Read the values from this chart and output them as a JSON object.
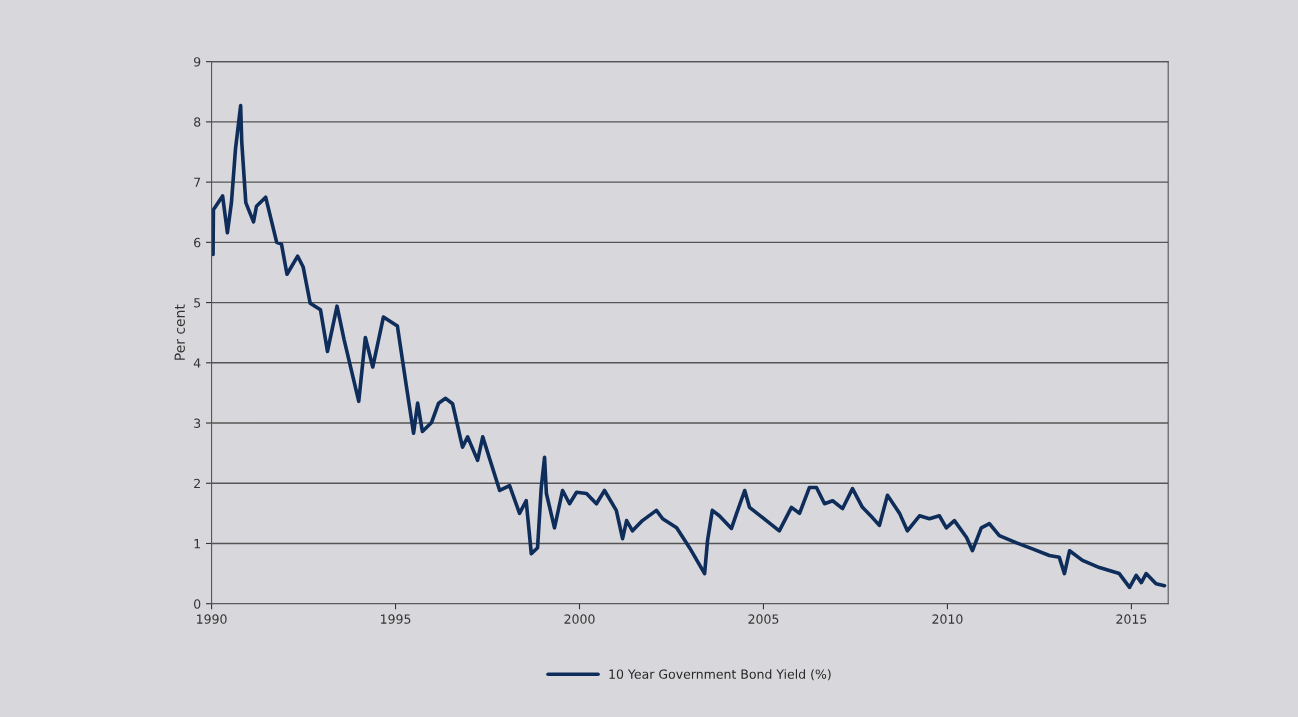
{
  "chart_data": {
    "type": "line",
    "ylabel": "Per cent",
    "xlim": [
      1990,
      2016
    ],
    "xticks": [
      1990,
      1995,
      2000,
      2005,
      2010,
      2015
    ],
    "ylim": [
      0,
      9
    ],
    "yticks": [
      0,
      1,
      2,
      3,
      4,
      5,
      6,
      7,
      8,
      9
    ],
    "grid": "y",
    "legend": "bottom",
    "marker": "none",
    "line_style": "solid",
    "x": [
      1990.04,
      1990.05,
      1990.3,
      1990.43,
      1990.54,
      1990.65,
      1990.79,
      1990.82,
      1990.93,
      1991.14,
      1991.22,
      1991.47,
      1991.77,
      1991.9,
      1992.05,
      1992.34,
      1992.49,
      1992.68,
      1992.96,
      1993.15,
      1993.41,
      1993.6,
      1994.0,
      1994.18,
      1994.38,
      1994.67,
      1995.05,
      1995.3,
      1995.49,
      1995.6,
      1995.73,
      1995.98,
      1996.17,
      1996.36,
      1996.55,
      1996.82,
      1996.96,
      1997.23,
      1997.37,
      1997.83,
      1998.1,
      1998.37,
      1998.55,
      1998.69,
      1998.86,
      1998.96,
      1999.05,
      1999.1,
      1999.32,
      1999.54,
      1999.73,
      1999.92,
      2000.19,
      2000.46,
      2000.68,
      2001.0,
      2001.17,
      2001.28,
      2001.44,
      2001.71,
      2002.09,
      2002.26,
      2002.64,
      2002.99,
      2003.4,
      2003.48,
      2003.61,
      2003.8,
      2004.13,
      2004.27,
      2004.49,
      2004.62,
      2005.08,
      2005.43,
      2005.76,
      2005.98,
      2006.25,
      2006.44,
      2006.66,
      2006.88,
      2007.15,
      2007.42,
      2007.69,
      2007.96,
      2008.15,
      2008.37,
      2008.7,
      2008.91,
      2009.24,
      2009.51,
      2009.78,
      2009.97,
      2010.19,
      2010.52,
      2010.68,
      2010.92,
      2011.14,
      2011.41,
      2011.88,
      2012.31,
      2012.77,
      2013.04,
      2013.18,
      2013.32,
      2013.67,
      2014.13,
      2014.67,
      2014.95,
      2015.13,
      2015.27,
      2015.4,
      2015.67,
      2015.9
    ],
    "series": [
      {
        "name": "10 Year Government Bond Yield (%)",
        "color": "#0f2d5a",
        "values": [
          5.8,
          6.54,
          6.77,
          6.16,
          6.66,
          7.55,
          8.27,
          7.67,
          6.66,
          6.34,
          6.6,
          6.75,
          6.0,
          5.97,
          5.47,
          5.77,
          5.59,
          4.99,
          4.88,
          4.19,
          4.94,
          4.39,
          3.36,
          4.42,
          3.93,
          4.76,
          4.61,
          3.59,
          2.83,
          3.33,
          2.86,
          3.01,
          3.33,
          3.41,
          3.32,
          2.6,
          2.77,
          2.38,
          2.77,
          1.88,
          1.96,
          1.5,
          1.71,
          0.83,
          0.93,
          1.93,
          2.43,
          1.83,
          1.26,
          1.88,
          1.66,
          1.85,
          1.83,
          1.66,
          1.88,
          1.55,
          1.08,
          1.38,
          1.21,
          1.38,
          1.55,
          1.41,
          1.26,
          0.93,
          0.5,
          1.05,
          1.55,
          1.46,
          1.25,
          1.5,
          1.88,
          1.6,
          1.38,
          1.21,
          1.6,
          1.5,
          1.93,
          1.93,
          1.66,
          1.71,
          1.58,
          1.91,
          1.6,
          1.43,
          1.3,
          1.8,
          1.5,
          1.21,
          1.46,
          1.41,
          1.46,
          1.26,
          1.38,
          1.1,
          0.88,
          1.26,
          1.33,
          1.13,
          1.01,
          0.91,
          0.8,
          0.77,
          0.5,
          0.88,
          0.72,
          0.6,
          0.5,
          0.27,
          0.47,
          0.35,
          0.5,
          0.33,
          0.3
        ]
      }
    ]
  }
}
